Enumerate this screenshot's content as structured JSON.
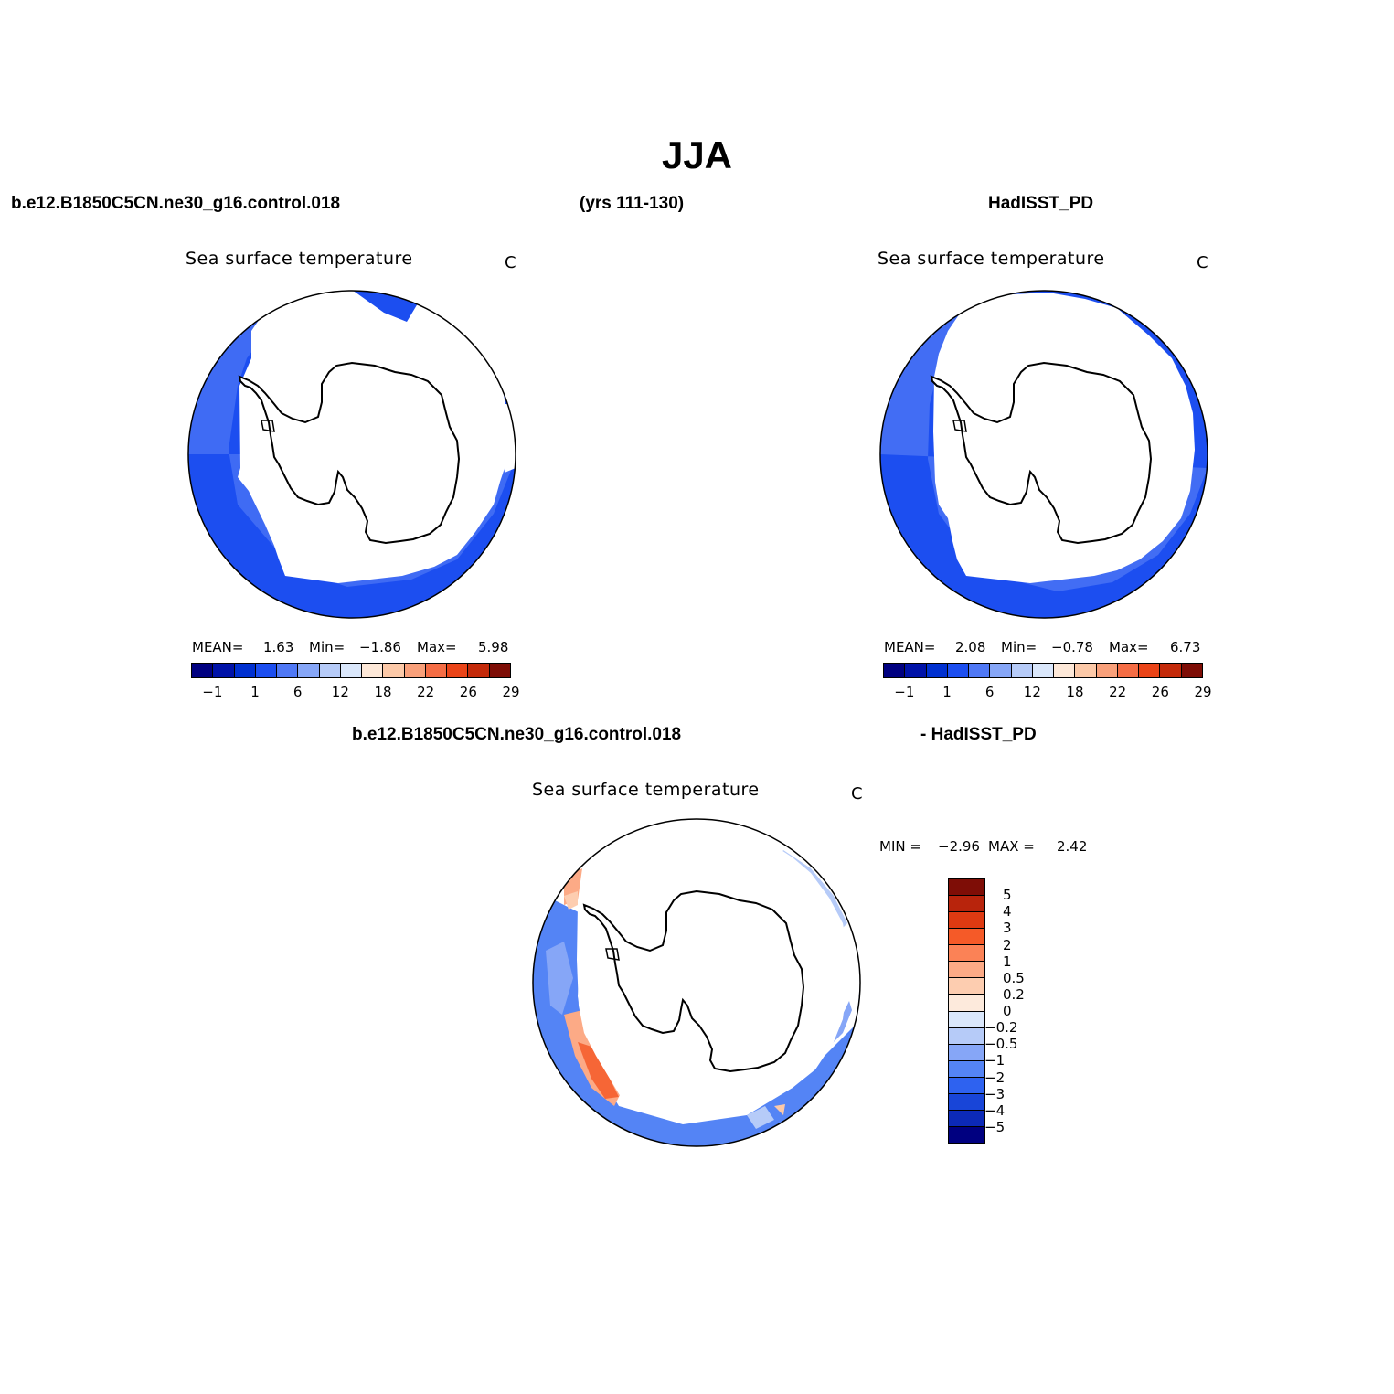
{
  "title": "JJA",
  "header": {
    "case_name": "b.e12.B1850C5CN.ne30_g16.control.018",
    "years": "(yrs 111-130)",
    "obs_name": "HadISST_PD"
  },
  "diff_header": {
    "left": "b.e12.B1850C5CN.ne30_g16.control.018",
    "right": "- HadISST_PD"
  },
  "panels": [
    {
      "id": "model",
      "title": "Sea surface temperature",
      "units": "C",
      "mean_label": "MEAN=",
      "mean": "1.63",
      "min_label": "Min=",
      "min": "−1.86",
      "max_label": "Max=",
      "max": "5.98"
    },
    {
      "id": "obs",
      "title": "Sea surface temperature",
      "units": "C",
      "mean_label": "MEAN=",
      "mean": "2.08",
      "min_label": "Min=",
      "min": "−0.78",
      "max_label": "Max=",
      "max": "6.73"
    },
    {
      "id": "diff",
      "title": "Sea surface temperature",
      "units": "C",
      "min_label": "MIN =",
      "min": "−2.96",
      "max_label": "MAX =",
      "max": "2.42"
    }
  ],
  "colorbar_abs": {
    "colors": [
      "#000080",
      "#0012a8",
      "#0030d0",
      "#1c4ef0",
      "#4f78f5",
      "#86a6f7",
      "#b6cbf8",
      "#dae7fb",
      "#fde8d8",
      "#fcc9a8",
      "#f9a07a",
      "#f56d45",
      "#ea4418",
      "#c42a0a",
      "#7e0d06"
    ],
    "labels": [
      "−1",
      "1",
      "6",
      "12",
      "18",
      "22",
      "26",
      "29"
    ]
  },
  "colorbar_diff": {
    "colors": [
      "#7e0d06",
      "#b8240c",
      "#de3a12",
      "#f55a28",
      "#fb8256",
      "#fcaa86",
      "#fdcdb0",
      "#fdeadc",
      "#dae7fb",
      "#b6cbf8",
      "#86a6f7",
      "#5484f5",
      "#2e62f0",
      "#1845d8",
      "#0c2ab8",
      "#000080"
    ],
    "labels": [
      "5",
      "4",
      "3",
      "2",
      "1",
      "0.5",
      "0.2",
      "0",
      "−0.2",
      "−0.5",
      "−1",
      "−2",
      "−3",
      "−4",
      "−5"
    ]
  },
  "chart_data": [
    {
      "type": "heatmap",
      "title": "Sea surface temperature",
      "units": "C",
      "projection": "south polar stereographic",
      "mean": 1.63,
      "min": -1.86,
      "max": 5.98,
      "levels": [
        -1,
        1,
        6,
        12,
        18,
        22,
        26,
        29
      ]
    },
    {
      "type": "heatmap",
      "title": "Sea surface temperature",
      "units": "C",
      "projection": "south polar stereographic",
      "mean": 2.08,
      "min": -0.78,
      "max": 6.73,
      "levels": [
        -1,
        1,
        6,
        12,
        18,
        22,
        26,
        29
      ]
    },
    {
      "type": "heatmap",
      "title": "Sea surface temperature",
      "units": "C",
      "projection": "south polar stereographic",
      "min": -2.96,
      "max": 2.42,
      "levels": [
        5,
        4,
        3,
        2,
        1,
        0.5,
        0.2,
        0,
        -0.2,
        -0.5,
        -1,
        -2,
        -3,
        -4,
        -5
      ]
    }
  ]
}
